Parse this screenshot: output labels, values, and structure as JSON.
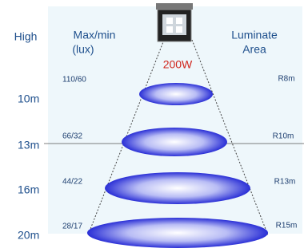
{
  "header": {
    "high": "High",
    "lux_title": "Max/min",
    "lux_unit": "(lux)",
    "area_title": "Luminate",
    "area_unit": "Area"
  },
  "power": "200W",
  "rows": [
    {
      "height": "10m",
      "lux": "110/60",
      "radius": "R8m"
    },
    {
      "height": "13m",
      "lux": "66/32",
      "radius": "R10m"
    },
    {
      "height": "16m",
      "lux": "44/22",
      "radius": "R13m"
    },
    {
      "height": "20m",
      "lux": "28/17",
      "radius": "R15m"
    }
  ]
}
